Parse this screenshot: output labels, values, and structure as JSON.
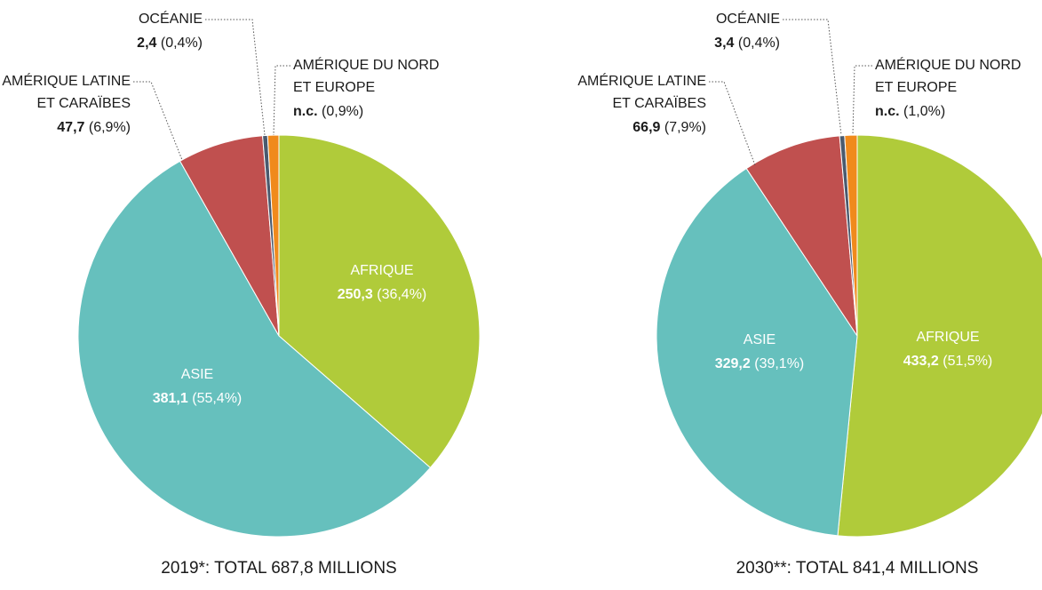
{
  "chart_data": [
    {
      "type": "pie",
      "title": "2019*: TOTAL 687,8 MILLIONS",
      "categories": [
        [
          "AFRIQUE"
        ],
        [
          "ASIE"
        ],
        [
          "AMÉRIQUE LATINE",
          "ET CARAÏBES"
        ],
        [
          "OCÉANIE"
        ],
        [
          "AMÉRIQUE DU NORD",
          "ET EUROPE"
        ]
      ],
      "values": [
        36.4,
        55.4,
        6.9,
        0.4,
        0.9
      ],
      "value_labels": [
        "(36,4%)",
        "(55,4%)",
        "(6,9%)",
        "(0,4%)",
        "(0,9%)"
      ],
      "amount_labels": [
        "250,3",
        "381,1",
        "47,7",
        "2,4",
        "n.c."
      ],
      "colors": [
        "#b0cb3a",
        "#66c0bd",
        "#c0504f",
        "#4a5a6e",
        "#f08a1c"
      ]
    },
    {
      "type": "pie",
      "title": "2030**: TOTAL 841,4 MILLIONS",
      "categories": [
        [
          "AFRIQUE"
        ],
        [
          "ASIE"
        ],
        [
          "AMÉRIQUE LATINE",
          "ET CARAÏBES"
        ],
        [
          "OCÉANIE"
        ],
        [
          "AMÉRIQUE DU NORD",
          "ET EUROPE"
        ]
      ],
      "values": [
        51.5,
        39.1,
        7.9,
        0.4,
        1.0
      ],
      "value_labels": [
        "(51,5%)",
        "(39,1%)",
        "(7,9%)",
        "(0,4%)",
        "(1,0%)"
      ],
      "amount_labels": [
        "433,2",
        "329,2",
        "66,9",
        "3,4",
        "n.c."
      ],
      "colors": [
        "#b0cb3a",
        "#66c0bd",
        "#c0504f",
        "#4a5a6e",
        "#f08a1c"
      ]
    }
  ]
}
